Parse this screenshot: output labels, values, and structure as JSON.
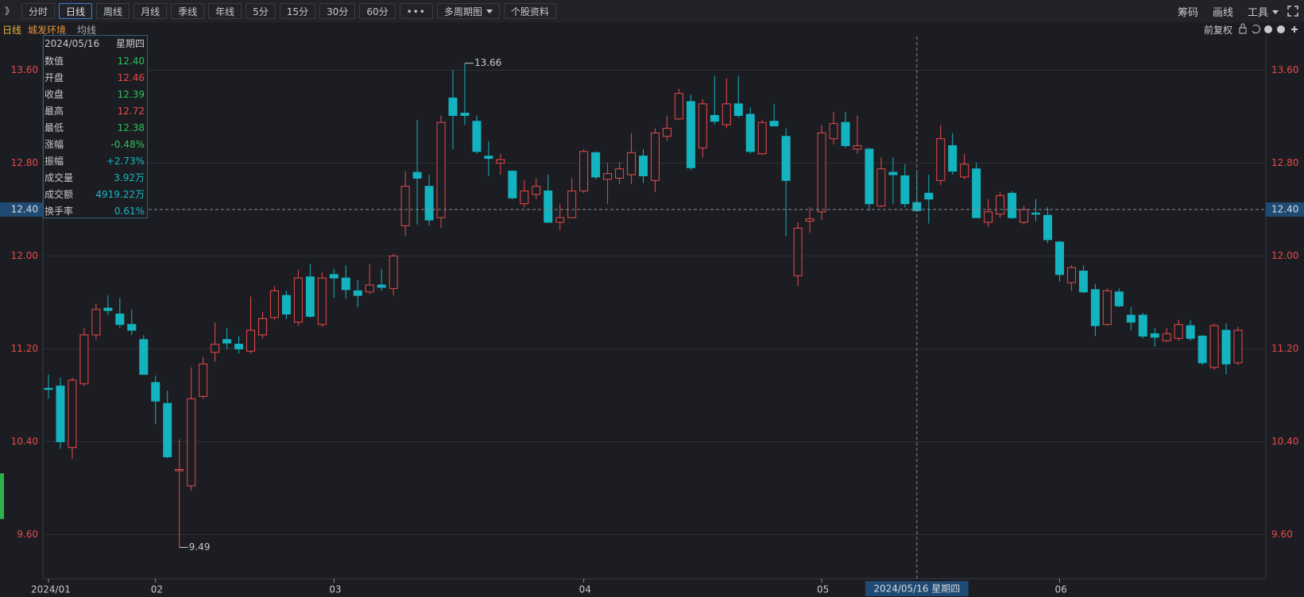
{
  "toolbar": {
    "left": [
      "》",
      "分时",
      "日线",
      "周线",
      "月线",
      "季线",
      "年线",
      "5分",
      "15分",
      "30分",
      "60分",
      "多周期图",
      "个股资料"
    ],
    "active": "日线",
    "right": [
      "筹码",
      "画线",
      "工具"
    ]
  },
  "header": {
    "period": "日线",
    "stock": "城发环境",
    "indicator": "均线",
    "adjust": "前复权"
  },
  "info": {
    "date": "2024/05/16",
    "weekday": "星期四",
    "rows": [
      {
        "label": "数值",
        "value": "12.40",
        "color": "#2bc25b"
      },
      {
        "label": "开盘",
        "value": "12.46",
        "color": "#e84a4a"
      },
      {
        "label": "收盘",
        "value": "12.39",
        "color": "#2bc25b"
      },
      {
        "label": "最高",
        "value": "12.72",
        "color": "#e84a4a"
      },
      {
        "label": "最低",
        "value": "12.38",
        "color": "#2bc25b"
      },
      {
        "label": "涨幅",
        "value": "-0.48%",
        "color": "#2bc25b"
      },
      {
        "label": "振幅",
        "value": "+2.73%",
        "color": "#19b8c4"
      },
      {
        "label": "成交量",
        "value": "3.92万",
        "color": "#19b8c4"
      },
      {
        "label": "成交额",
        "value": "4919.22万",
        "color": "#19b8c4"
      },
      {
        "label": "换手率",
        "value": "0.61%",
        "color": "#19b8c4"
      }
    ]
  },
  "chart_data": {
    "type": "candlestick",
    "categories": [
      "2024/01",
      null,
      null,
      null,
      null,
      null,
      null,
      null,
      null,
      "02",
      null,
      null,
      null,
      null,
      null,
      null,
      null,
      null,
      null,
      null,
      null,
      null,
      null,
      null,
      "03",
      null,
      null,
      null,
      null,
      null,
      null,
      null,
      null,
      null,
      null,
      null,
      null,
      null,
      null,
      null,
      null,
      null,
      null,
      null,
      null,
      "04",
      null,
      null,
      null,
      null,
      null,
      null,
      null,
      null,
      null,
      null,
      null,
      null,
      null,
      null,
      null,
      null,
      null,
      null,
      null,
      "05",
      null,
      null,
      null,
      null,
      null,
      null,
      null,
      null,
      null,
      null,
      null,
      null,
      null,
      null,
      null,
      null,
      null,
      null,
      null,
      "06",
      null,
      null,
      null,
      null,
      null,
      null,
      null,
      null,
      null,
      null,
      null,
      null,
      null,
      null,
      null
    ],
    "open": [
      10.86,
      10.88,
      10.35,
      10.9,
      11.32,
      11.55,
      11.5,
      11.41,
      11.28,
      10.91,
      10.73,
      10.15,
      10.02,
      10.79,
      11.17,
      11.28,
      11.24,
      11.18,
      11.32,
      11.47,
      11.66,
      11.43,
      11.82,
      11.41,
      11.84,
      11.81,
      11.7,
      11.69,
      11.75,
      11.72,
      12.26,
      12.72,
      12.6,
      12.33,
      13.36,
      13.23,
      13.16,
      12.86,
      12.8,
      12.73,
      12.45,
      12.53,
      12.56,
      12.29,
      12.33,
      12.56,
      12.89,
      12.66,
      12.67,
      12.7,
      12.86,
      12.65,
      13.03,
      13.18,
      13.33,
      12.93,
      13.21,
      13.13,
      13.31,
      13.22,
      12.88,
      13.16,
      13.03,
      11.83,
      12.3,
      12.38,
      13.01,
      13.15,
      12.92,
      12.92,
      12.43,
      12.72,
      12.69,
      12.46,
      12.54,
      12.65,
      12.95,
      12.68,
      12.75,
      12.29,
      12.36,
      12.54,
      12.29,
      12.37,
      12.35,
      12.12,
      11.77,
      11.87,
      11.71,
      11.41,
      11.69,
      11.49,
      11.49,
      11.33,
      11.27,
      11.29,
      11.4,
      11.31,
      11.04,
      11.36,
      11.08
    ],
    "high": [
      10.98,
      10.95,
      10.95,
      11.38,
      11.59,
      11.66,
      11.64,
      11.54,
      11.32,
      10.97,
      10.84,
      10.42,
      11.04,
      11.13,
      11.43,
      11.38,
      11.31,
      11.65,
      11.52,
      11.74,
      11.7,
      11.88,
      11.93,
      11.86,
      11.89,
      11.92,
      11.79,
      11.93,
      11.89,
      12.02,
      12.73,
      13.17,
      12.7,
      13.21,
      13.6,
      13.66,
      13.21,
      12.99,
      12.88,
      12.74,
      12.65,
      12.67,
      12.7,
      12.45,
      12.67,
      12.92,
      12.9,
      12.8,
      12.81,
      13.06,
      12.92,
      13.1,
      13.21,
      13.44,
      13.39,
      13.35,
      13.55,
      13.53,
      13.55,
      13.28,
      13.17,
      13.31,
      13.1,
      12.29,
      12.42,
      13.13,
      13.24,
      13.24,
      13.21,
      12.93,
      12.85,
      12.85,
      12.79,
      12.72,
      12.7,
      13.13,
      13.06,
      12.88,
      12.8,
      12.49,
      12.55,
      12.56,
      12.43,
      12.49,
      12.42,
      12.13,
      11.92,
      11.92,
      11.76,
      11.72,
      11.72,
      11.56,
      11.51,
      11.38,
      11.38,
      11.45,
      11.45,
      11.32,
      11.42,
      11.42,
      11.39
    ],
    "low": [
      10.77,
      10.34,
      10.25,
      10.88,
      11.28,
      11.49,
      11.38,
      11.32,
      10.98,
      10.55,
      10.26,
      9.49,
      9.98,
      10.77,
      11.09,
      11.2,
      11.16,
      11.16,
      11.29,
      11.45,
      11.46,
      11.4,
      11.47,
      11.39,
      11.64,
      11.63,
      11.56,
      11.67,
      11.7,
      11.66,
      12.17,
      12.27,
      12.26,
      12.24,
      12.92,
      13.13,
      12.88,
      12.69,
      12.7,
      12.49,
      12.42,
      12.49,
      12.29,
      12.22,
      12.33,
      12.54,
      12.66,
      12.45,
      12.62,
      12.62,
      12.63,
      12.55,
      12.99,
      13.17,
      12.74,
      12.85,
      13.13,
      13.1,
      13.19,
      12.88,
      12.87,
      13.12,
      12.17,
      11.74,
      12.2,
      12.31,
      12.96,
      12.93,
      12.88,
      12.39,
      12.42,
      12.45,
      12.42,
      12.38,
      12.28,
      12.61,
      12.7,
      12.66,
      12.33,
      12.25,
      12.33,
      12.32,
      12.27,
      12.3,
      12.11,
      11.78,
      11.7,
      11.68,
      11.31,
      11.4,
      11.56,
      11.36,
      11.29,
      11.22,
      11.26,
      11.27,
      11.27,
      11.06,
      11.02,
      10.98,
      11.06
    ],
    "close": [
      10.85,
      10.4,
      10.93,
      11.32,
      11.54,
      11.53,
      11.41,
      11.36,
      10.98,
      10.75,
      10.27,
      10.16,
      10.77,
      11.07,
      11.24,
      11.25,
      11.2,
      11.36,
      11.46,
      11.7,
      11.5,
      11.81,
      11.48,
      11.81,
      11.81,
      11.71,
      11.66,
      11.75,
      11.73,
      12.0,
      12.6,
      12.67,
      12.31,
      13.15,
      13.21,
      13.21,
      12.9,
      12.84,
      12.83,
      12.5,
      12.56,
      12.6,
      12.29,
      12.33,
      12.56,
      12.9,
      12.68,
      12.71,
      12.75,
      12.89,
      12.69,
      13.06,
      13.1,
      13.4,
      12.76,
      13.31,
      13.16,
      13.31,
      13.21,
      12.9,
      13.15,
      13.12,
      12.65,
      12.24,
      12.32,
      13.06,
      13.14,
      12.95,
      12.95,
      12.45,
      12.75,
      12.7,
      12.45,
      12.39,
      12.49,
      13.01,
      12.73,
      12.79,
      12.33,
      12.38,
      12.52,
      12.33,
      12.4,
      12.36,
      12.14,
      11.84,
      11.9,
      11.69,
      11.4,
      11.7,
      11.57,
      11.43,
      11.31,
      11.3,
      11.33,
      11.41,
      11.29,
      11.08,
      11.4,
      11.07,
      11.36
    ],
    "up_color": "#e84a4a",
    "down_color": "#14b3c0",
    "ylim": [
      9.22,
      13.89
    ],
    "yticks": [
      {
        "value": 9.6,
        "label": "9.60"
      },
      {
        "value": 10.4,
        "label": "10.40"
      },
      {
        "value": 11.2,
        "label": "11.20"
      },
      {
        "value": 12.0,
        "label": "12.00"
      },
      {
        "value": 12.8,
        "label": "12.80"
      },
      {
        "value": 13.6,
        "label": "13.60"
      }
    ],
    "grid": true,
    "crosshair": {
      "index": 73,
      "value": 12.4,
      "value_label": "12.40",
      "x_label": "2024/05/16 星期四"
    }
  }
}
